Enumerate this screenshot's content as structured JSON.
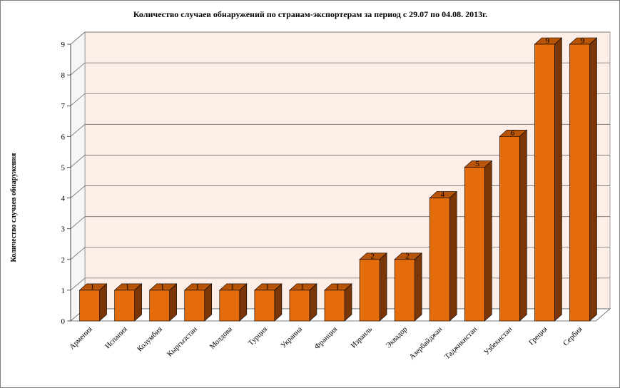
{
  "chart_data": {
    "type": "bar",
    "title": "Количество случаев обнаружений по странам-экспортерам за период с 29.07 по 04.08. 2013г.",
    "ylabel": "Количество случаев обнаружения",
    "xlabel": "",
    "ylim": [
      0,
      9
    ],
    "yticks": [
      0,
      1,
      2,
      3,
      4,
      5,
      6,
      7,
      8,
      9
    ],
    "grid": true,
    "legend": "none",
    "categories": [
      "Армения",
      "Испания",
      "Колумбия",
      "Кыргызстан",
      "Молдова",
      "Турция",
      "Украина",
      "Франция",
      "Израиль",
      "Эквадор",
      "Азербайджан",
      "Таджикистан",
      "Узбекистан",
      "Греция",
      "Сербия"
    ],
    "values": [
      1,
      1,
      1,
      1,
      1,
      1,
      1,
      1,
      2,
      2,
      4,
      5,
      6,
      9,
      9
    ],
    "data_labels": [
      "1",
      "1",
      "1",
      "1",
      "1",
      "1",
      "1",
      "1",
      "2",
      "2",
      "4",
      "5",
      "6",
      "9",
      "9"
    ],
    "colors": {
      "bar_front": "#e46c0a",
      "bar_side": "#7a3606",
      "bar_top": "#b85408",
      "wall": "#fdeee8",
      "grid": "#6e6e6e"
    }
  }
}
